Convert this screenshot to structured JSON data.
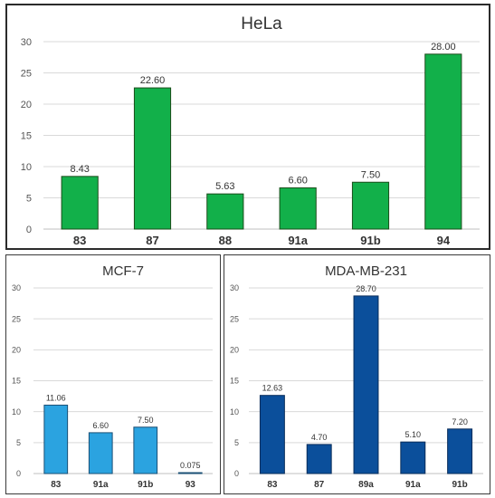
{
  "chart_data": [
    {
      "type": "bar",
      "title": "HeLa",
      "categories": [
        "83",
        "87",
        "88",
        "91a",
        "91b",
        "94"
      ],
      "values": [
        8.43,
        22.6,
        5.63,
        6.6,
        7.5,
        28.0
      ],
      "data_labels": [
        "8.43",
        "22.60",
        "5.63",
        "6.60",
        "7.50",
        "28.00"
      ],
      "ylim": [
        0,
        30
      ],
      "yticks": [
        0,
        5,
        10,
        15,
        20,
        25,
        30
      ],
      "grid": true,
      "bar_color": "#12b04a",
      "bar_edge": "#1a4d1a"
    },
    {
      "type": "bar",
      "title": "MCF-7",
      "categories": [
        "83",
        "91a",
        "91b",
        "93"
      ],
      "values": [
        11.06,
        6.6,
        7.5,
        0.075
      ],
      "data_labels": [
        "11.06",
        "6.60",
        "7.50",
        "0.075"
      ],
      "ylim": [
        0,
        30
      ],
      "yticks": [
        0,
        5,
        10,
        15,
        20,
        25,
        30
      ],
      "grid": true,
      "bar_color": "#2ba3e0",
      "bar_edge": "#1a4f75"
    },
    {
      "type": "bar",
      "title": "MDA-MB-231",
      "categories": [
        "83",
        "87",
        "89a",
        "91a",
        "91b"
      ],
      "values": [
        12.63,
        4.7,
        28.7,
        5.1,
        7.2
      ],
      "data_labels": [
        "12.63",
        "4.70",
        "28.70",
        "5.10",
        "7.20"
      ],
      "ylim": [
        0,
        30
      ],
      "yticks": [
        0,
        5,
        10,
        15,
        20,
        25,
        30
      ],
      "grid": true,
      "bar_color": "#0b4f9b",
      "bar_edge": "#082c5a"
    }
  ]
}
